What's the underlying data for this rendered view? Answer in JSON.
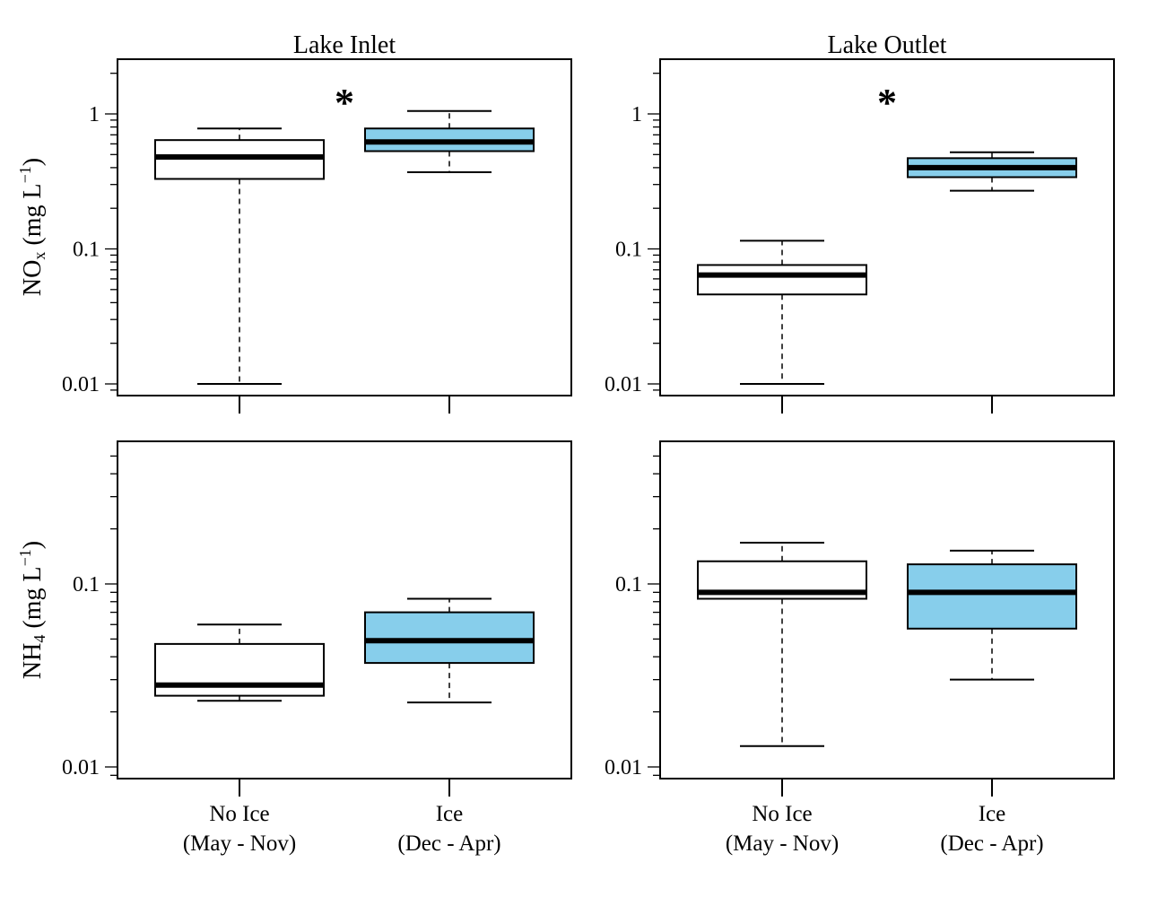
{
  "colors": {
    "no_ice_fill": "#ffffff",
    "ice_fill": "#87ceeb",
    "stroke": "#000000"
  },
  "columns": [
    "Lake Inlet",
    "Lake Outlet"
  ],
  "row_labels": [
    {
      "main": "NO",
      "sub": "x",
      "unit": " (mg L",
      "sup": "−1",
      "close": ")"
    },
    {
      "main": "NH",
      "sub": "4",
      "unit": " (mg L",
      "sup": "−1",
      "close": ")"
    }
  ],
  "x_tick_labels": [
    {
      "line1": "No Ice",
      "line2": "(May - Nov)"
    },
    {
      "line1": "Ice",
      "line2": "(Dec - Apr)"
    }
  ],
  "chart_data": [
    {
      "type": "box",
      "title": "Lake Inlet",
      "ylabel": "NOx (mg L−1)",
      "yscale": "log",
      "ylim": [
        0.008,
        2.3
      ],
      "y_tick_labels": [
        "0.01",
        "0.1",
        "1"
      ],
      "x_tick_labels": [],
      "significance": "*",
      "categories": [
        "No Ice (May - Nov)",
        "Ice (Dec - Apr)"
      ],
      "boxes": [
        {
          "category": "No Ice (May - Nov)",
          "whisker_low": 0.01,
          "q1": 0.33,
          "median": 0.48,
          "q3": 0.64,
          "whisker_high": 0.78
        },
        {
          "category": "Ice (Dec - Apr)",
          "whisker_low": 0.37,
          "q1": 0.53,
          "median": 0.62,
          "q3": 0.78,
          "whisker_high": 1.05
        }
      ]
    },
    {
      "type": "box",
      "title": "Lake Outlet",
      "ylabel": "",
      "yscale": "log",
      "ylim": [
        0.008,
        2.3
      ],
      "y_tick_labels": [
        "0.01",
        "0.1",
        "1"
      ],
      "x_tick_labels": [],
      "significance": "*",
      "categories": [
        "No Ice (May - Nov)",
        "Ice (Dec - Apr)"
      ],
      "boxes": [
        {
          "category": "No Ice (May - Nov)",
          "whisker_low": 0.01,
          "q1": 0.046,
          "median": 0.064,
          "q3": 0.076,
          "whisker_high": 0.115
        },
        {
          "category": "Ice (Dec - Apr)",
          "whisker_low": 0.27,
          "q1": 0.34,
          "median": 0.4,
          "q3": 0.47,
          "whisker_high": 0.52
        }
      ]
    },
    {
      "type": "box",
      "title": "",
      "ylabel": "NH4 (mg L−1)",
      "yscale": "log",
      "ylim": [
        0.0085,
        0.6
      ],
      "y_tick_labels": [
        "0.01",
        "0.1"
      ],
      "x_tick_labels": [
        "No Ice (May - Nov)",
        "Ice (Dec - Apr)"
      ],
      "significance": "",
      "categories": [
        "No Ice (May - Nov)",
        "Ice (Dec - Apr)"
      ],
      "boxes": [
        {
          "category": "No Ice (May - Nov)",
          "whisker_low": 0.023,
          "q1": 0.0245,
          "median": 0.028,
          "q3": 0.047,
          "whisker_high": 0.06
        },
        {
          "category": "Ice (Dec - Apr)",
          "whisker_low": 0.0225,
          "q1": 0.037,
          "median": 0.049,
          "q3": 0.07,
          "whisker_high": 0.083
        }
      ]
    },
    {
      "type": "box",
      "title": "",
      "ylabel": "",
      "yscale": "log",
      "ylim": [
        0.0085,
        0.6
      ],
      "y_tick_labels": [
        "0.01",
        "0.1"
      ],
      "x_tick_labels": [
        "No Ice (May - Nov)",
        "Ice (Dec - Apr)"
      ],
      "significance": "",
      "categories": [
        "No Ice (May - Nov)",
        "Ice (Dec - Apr)"
      ],
      "boxes": [
        {
          "category": "No Ice (May - Nov)",
          "whisker_low": 0.013,
          "q1": 0.083,
          "median": 0.09,
          "q3": 0.133,
          "whisker_high": 0.168
        },
        {
          "category": "Ice (Dec - Apr)",
          "whisker_low": 0.03,
          "q1": 0.057,
          "median": 0.09,
          "q3": 0.128,
          "whisker_high": 0.152
        }
      ]
    }
  ]
}
